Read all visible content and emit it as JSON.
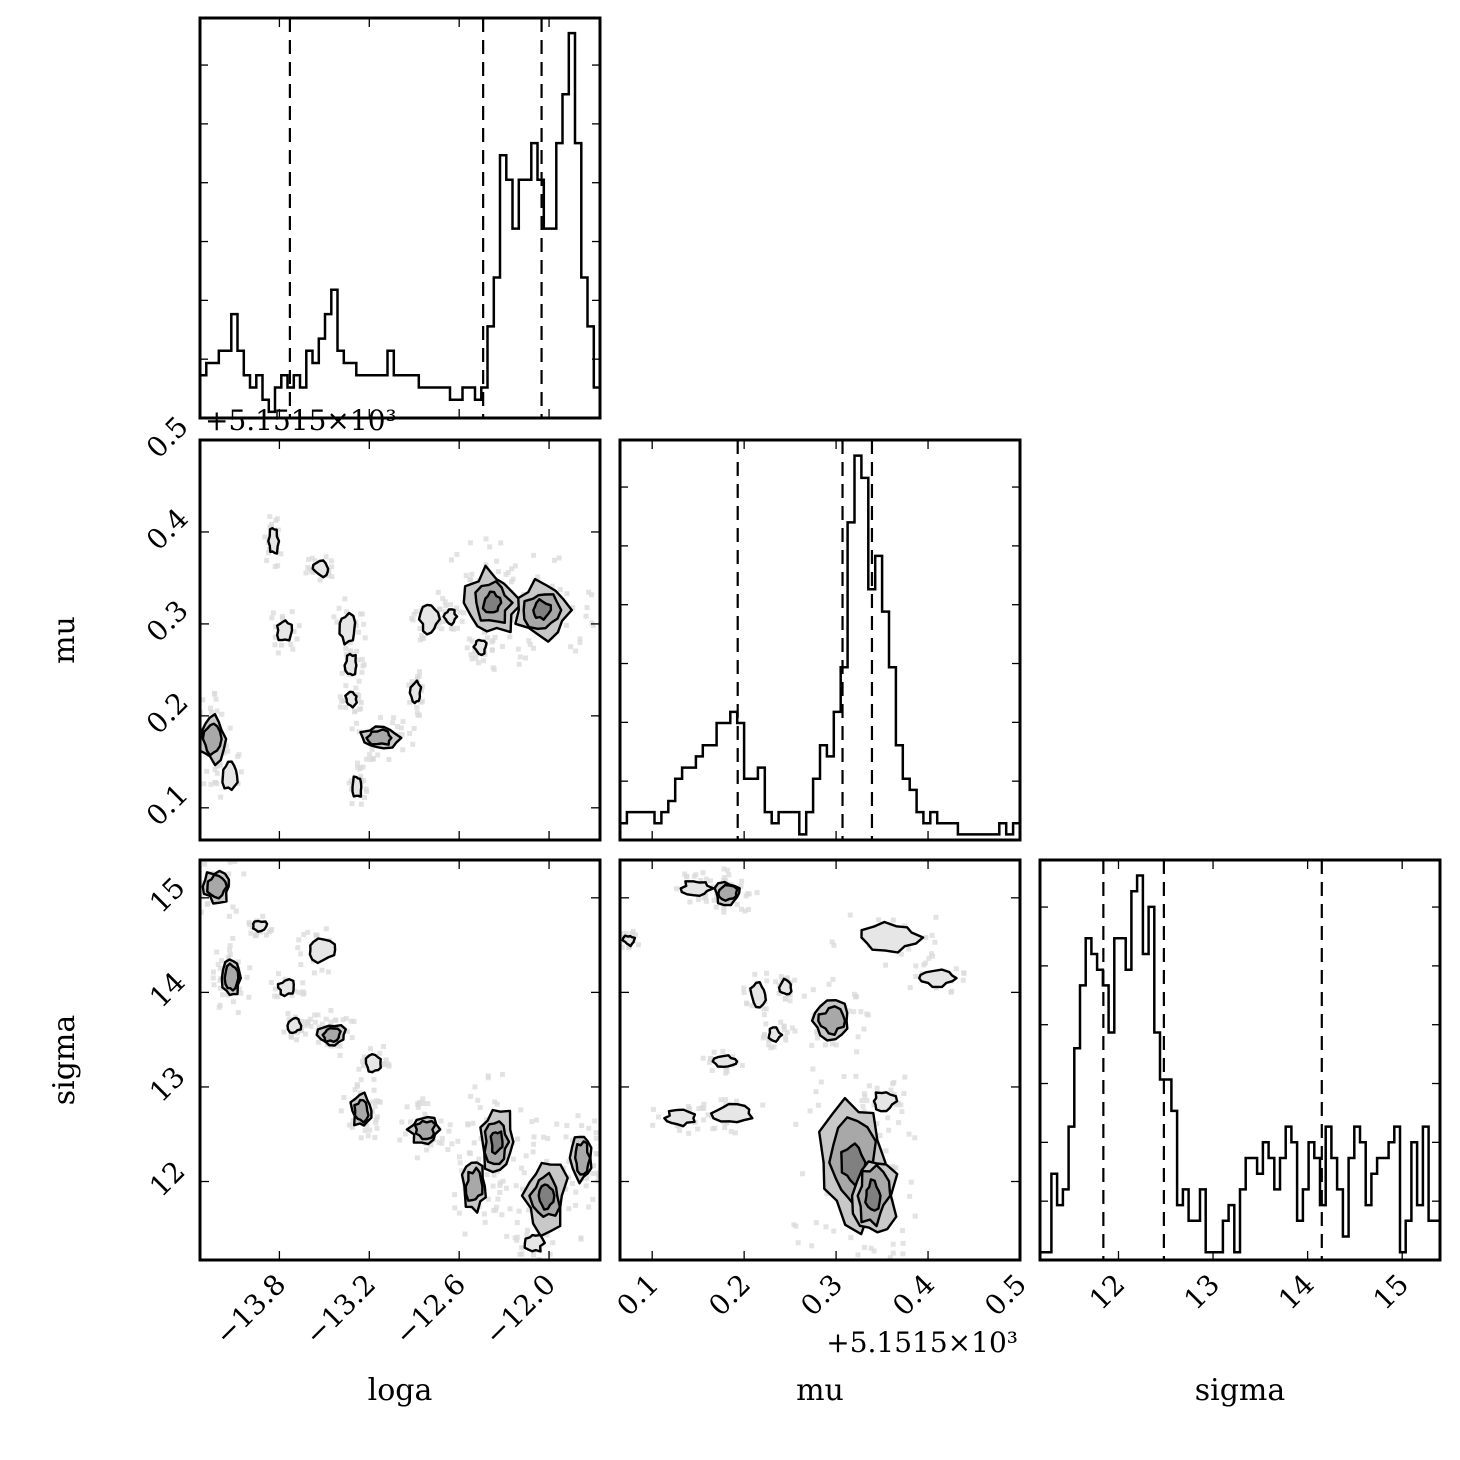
{
  "chart_data": {
    "type": "corner",
    "parameters": [
      {
        "name": "loga",
        "label": "loga",
        "range": [
          -14.33,
          -11.66
        ],
        "ticks": [
          -13.8,
          -13.2,
          -12.6,
          -12.0
        ],
        "tick_labels": [
          "−13.8",
          "−13.2",
          "−12.6",
          "−12.0"
        ],
        "quantiles": [
          -13.73,
          -12.44,
          -12.05
        ]
      },
      {
        "name": "mu",
        "label": "mu",
        "offset": "+5.1515×10³",
        "range": [
          0.065,
          0.5
        ],
        "ticks": [
          0.1,
          0.2,
          0.3,
          0.4,
          0.5
        ],
        "tick_labels": [
          "0.1",
          "0.2",
          "0.3",
          "0.4",
          "0.5"
        ],
        "quantiles": [
          0.193,
          0.307,
          0.339
        ]
      },
      {
        "name": "sigma",
        "label": "sigma",
        "range": [
          11.17,
          15.4
        ],
        "ticks": [
          12,
          13,
          14,
          15
        ],
        "tick_labels": [
          "12",
          "13",
          "14",
          "15"
        ],
        "quantiles": [
          11.84,
          12.48,
          14.15
        ]
      }
    ],
    "histograms": {
      "loga": {
        "y": [
          1,
          2,
          2,
          3,
          3,
          6,
          3,
          1,
          0,
          1,
          -1,
          -2,
          0,
          1,
          0,
          1,
          0,
          3,
          2,
          4,
          6,
          8,
          3,
          2,
          2,
          1,
          1,
          1,
          1,
          1,
          3,
          1,
          1,
          1,
          1,
          0,
          0,
          0,
          0,
          0,
          -1,
          -1,
          0,
          0,
          -1,
          0,
          5,
          9,
          19,
          17,
          13,
          17,
          17,
          20,
          17,
          13,
          13,
          20,
          24,
          29,
          20,
          9,
          5,
          0
        ]
      },
      "mu": {
        "y": [
          1,
          2,
          2,
          2,
          2,
          1,
          2,
          3,
          5,
          6,
          6,
          7,
          8,
          8,
          10,
          10,
          11,
          10,
          5,
          5,
          6,
          2,
          1,
          2,
          2,
          2,
          0,
          2,
          5,
          8,
          7,
          11,
          15,
          28,
          34,
          32,
          22,
          25,
          20,
          15,
          8,
          5,
          4,
          2,
          1,
          2,
          1,
          1,
          1,
          0,
          0,
          0,
          0,
          0,
          0,
          1,
          0,
          1
        ]
      },
      "sigma": {
        "y": [
          0,
          0,
          5,
          3,
          4,
          8,
          13,
          17,
          20,
          19,
          18,
          17,
          14,
          20,
          20,
          18,
          23,
          24,
          19,
          22,
          14,
          11,
          11,
          9,
          3,
          4,
          2,
          2,
          4,
          0,
          0,
          0,
          2,
          3,
          0,
          4,
          6,
          6,
          5,
          7,
          6,
          4,
          6,
          8,
          7,
          2,
          4,
          7,
          6,
          3,
          8,
          6,
          4,
          1,
          6,
          8,
          7,
          3,
          5,
          6,
          6,
          7,
          8,
          0,
          2,
          7,
          3,
          8,
          2,
          2
        ]
      }
    },
    "contour_regions": {
      "loga_mu": [
        {
          "x": -14.25,
          "y": 0.175,
          "r": [
            0.08,
            0.025
          ],
          "level": 1
        },
        {
          "x": -14.13,
          "y": 0.135,
          "r": [
            0.05,
            0.015
          ],
          "level": 0
        },
        {
          "x": -13.77,
          "y": 0.293,
          "r": [
            0.05,
            0.012
          ],
          "level": 0
        },
        {
          "x": -13.84,
          "y": 0.39,
          "r": [
            0.03,
            0.015
          ],
          "level": 0
        },
        {
          "x": -13.35,
          "y": 0.295,
          "r": [
            0.06,
            0.015
          ],
          "level": 0
        },
        {
          "x": -13.52,
          "y": 0.36,
          "r": [
            0.05,
            0.008
          ],
          "level": 0
        },
        {
          "x": -13.32,
          "y": 0.255,
          "r": [
            0.04,
            0.012
          ],
          "level": 0
        },
        {
          "x": -13.32,
          "y": 0.218,
          "r": [
            0.04,
            0.008
          ],
          "level": 0
        },
        {
          "x": -13.13,
          "y": 0.176,
          "r": [
            0.12,
            0.012
          ],
          "level": 1
        },
        {
          "x": -13.28,
          "y": 0.123,
          "r": [
            0.03,
            0.012
          ],
          "level": 0
        },
        {
          "x": -12.89,
          "y": 0.225,
          "r": [
            0.03,
            0.012
          ],
          "level": 0
        },
        {
          "x": -12.8,
          "y": 0.305,
          "r": [
            0.06,
            0.015
          ],
          "level": 0
        },
        {
          "x": -12.66,
          "y": 0.308,
          "r": [
            0.04,
            0.008
          ],
          "level": 0
        },
        {
          "x": -12.38,
          "y": 0.323,
          "r": [
            0.17,
            0.035
          ],
          "level": 2
        },
        {
          "x": -12.05,
          "y": 0.315,
          "r": [
            0.17,
            0.03
          ],
          "level": 2
        },
        {
          "x": -12.46,
          "y": 0.275,
          "r": [
            0.04,
            0.008
          ],
          "level": 0
        }
      ],
      "loga_sigma": [
        {
          "x": -14.22,
          "y": 15.12,
          "r": [
            0.09,
            0.17
          ],
          "level": 1
        },
        {
          "x": -14.12,
          "y": 14.15,
          "r": [
            0.06,
            0.2
          ],
          "level": 1
        },
        {
          "x": -13.93,
          "y": 14.7,
          "r": [
            0.05,
            0.05
          ],
          "level": 0
        },
        {
          "x": -13.75,
          "y": 14.05,
          "r": [
            0.06,
            0.08
          ],
          "level": 0
        },
        {
          "x": -13.52,
          "y": 14.45,
          "r": [
            0.09,
            0.12
          ],
          "level": 0
        },
        {
          "x": -13.45,
          "y": 13.55,
          "r": [
            0.09,
            0.12
          ],
          "level": 1
        },
        {
          "x": -13.7,
          "y": 13.65,
          "r": [
            0.04,
            0.08
          ],
          "level": 0
        },
        {
          "x": -13.17,
          "y": 13.25,
          "r": [
            0.05,
            0.1
          ],
          "level": 0
        },
        {
          "x": -13.25,
          "y": 12.75,
          "r": [
            0.07,
            0.17
          ],
          "level": 1
        },
        {
          "x": -12.83,
          "y": 12.55,
          "r": [
            0.1,
            0.15
          ],
          "level": 1
        },
        {
          "x": -12.35,
          "y": 12.42,
          "r": [
            0.12,
            0.35
          ],
          "level": 2
        },
        {
          "x": -12.5,
          "y": 11.95,
          "r": [
            0.08,
            0.25
          ],
          "level": 1
        },
        {
          "x": -12.02,
          "y": 11.85,
          "r": [
            0.14,
            0.38
          ],
          "level": 2
        },
        {
          "x": -12.1,
          "y": 11.35,
          "r": [
            0.06,
            0.1
          ],
          "level": 0
        },
        {
          "x": -11.78,
          "y": 12.25,
          "r": [
            0.07,
            0.25
          ],
          "level": 1
        }
      ],
      "mu_sigma": [
        {
          "x": 0.148,
          "y": 15.1,
          "r": [
            0.016,
            0.08
          ],
          "level": 0
        },
        {
          "x": 0.182,
          "y": 15.05,
          "r": [
            0.015,
            0.12
          ],
          "level": 1
        },
        {
          "x": 0.075,
          "y": 14.55,
          "r": [
            0.006,
            0.05
          ],
          "level": 0
        },
        {
          "x": 0.215,
          "y": 13.98,
          "r": [
            0.008,
            0.12
          ],
          "level": 0
        },
        {
          "x": 0.245,
          "y": 14.05,
          "r": [
            0.006,
            0.08
          ],
          "level": 0
        },
        {
          "x": 0.295,
          "y": 13.7,
          "r": [
            0.02,
            0.2
          ],
          "level": 1
        },
        {
          "x": 0.18,
          "y": 13.27,
          "r": [
            0.012,
            0.06
          ],
          "level": 0
        },
        {
          "x": 0.233,
          "y": 13.55,
          "r": [
            0.007,
            0.07
          ],
          "level": 0
        },
        {
          "x": 0.13,
          "y": 12.67,
          "r": [
            0.016,
            0.08
          ],
          "level": 0
        },
        {
          "x": 0.188,
          "y": 12.72,
          "r": [
            0.02,
            0.1
          ],
          "level": 0
        },
        {
          "x": 0.36,
          "y": 14.58,
          "r": [
            0.03,
            0.15
          ],
          "level": 0
        },
        {
          "x": 0.41,
          "y": 14.15,
          "r": [
            0.02,
            0.08
          ],
          "level": 0
        },
        {
          "x": 0.318,
          "y": 12.2,
          "r": [
            0.035,
            0.65
          ],
          "level": 2
        },
        {
          "x": 0.34,
          "y": 11.85,
          "r": [
            0.025,
            0.45
          ],
          "level": 2
        },
        {
          "x": 0.352,
          "y": 12.85,
          "r": [
            0.012,
            0.1
          ],
          "level": 0
        }
      ]
    }
  }
}
